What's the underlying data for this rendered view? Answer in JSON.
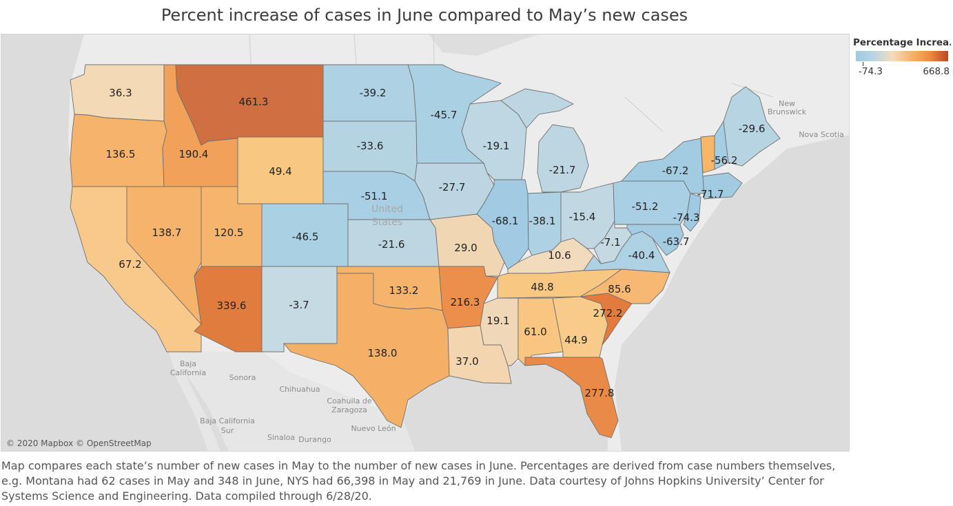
{
  "title": "Percent increase of cases in June compared to May’s new cases",
  "legend": {
    "title": "Percentage Increa..",
    "min_label": "-74.3",
    "max_label": "668.8",
    "colors": [
      "#9fcae1",
      "#b9d6e3",
      "#f6dbb9",
      "#f7b36a",
      "#ee8b44",
      "#b74a1f"
    ]
  },
  "attribution": "© 2020 Mapbox © OpenStreetMap",
  "geo_labels": {
    "new_brunswick_1": "New",
    "new_brunswick_2": "Brunswick",
    "nova_scotia": "Nova Scotia",
    "united_states_1": "United",
    "united_states_2": "States",
    "baja_california_1": "Baja",
    "baja_california_2": "California",
    "sonora": "Sonora",
    "chihuahua": "Chihuahua",
    "coahuila_1": "Coahuila de",
    "coahuila_2": "Zaragoza",
    "baja_california_sur_1": "Baja California",
    "baja_california_sur_2": "Sur",
    "nuevo_leon": "Nuevo León",
    "sinaloa": "Sinaloa",
    "durango": "Durango"
  },
  "states": {
    "WA": {
      "value": "36.3",
      "color": "#f3d9b6"
    },
    "OR": {
      "value": "136.5",
      "color": "#f6b36b"
    },
    "CA": {
      "value": "67.2",
      "color": "#f8c98a"
    },
    "ID": {
      "value": "190.4",
      "color": "#f2a158"
    },
    "MT": {
      "value": "461.3",
      "color": "#d06f41"
    },
    "WY": {
      "value": "49.4",
      "color": "#f8c781"
    },
    "NV": {
      "value": "138.7",
      "color": "#f6b36b"
    },
    "UT": {
      "value": "120.5",
      "color": "#f6b56d"
    },
    "AZ": {
      "value": "339.6",
      "color": "#e07c3e"
    },
    "CO": {
      "value": "-46.5",
      "color": "#a9d0e3"
    },
    "NM": {
      "value": "-3.7",
      "color": "#c5dae3"
    },
    "ND": {
      "value": "-39.2",
      "color": "#aed1e3"
    },
    "SD": {
      "value": "-33.6",
      "color": "#b5d4e2"
    },
    "NE": {
      "value": "-51.1",
      "color": "#a8cfe3"
    },
    "KS": {
      "value": "-21.6",
      "color": "#bdd6e2"
    },
    "OK": {
      "value": "133.2",
      "color": "#f6b36b"
    },
    "TX": {
      "value": "138.0",
      "color": "#f5b067"
    },
    "MN": {
      "value": "-45.7",
      "color": "#a9d0e3"
    },
    "IA": {
      "value": "-27.7",
      "color": "#bcd5e2"
    },
    "MO": {
      "value": "29.0",
      "color": "#f1d6b3"
    },
    "AR": {
      "value": "216.3",
      "color": "#ec8f4c"
    },
    "LA": {
      "value": "37.0",
      "color": "#f3d6b0"
    },
    "WI": {
      "value": "-19.1",
      "color": "#bfd7e2"
    },
    "IL": {
      "value": "-68.1",
      "color": "#a1cbe2"
    },
    "MS": {
      "value": "19.1",
      "color": "#f0d7b8"
    },
    "MI": {
      "value": "-21.7",
      "color": "#bdd6e2"
    },
    "IN": {
      "value": "-38.1",
      "color": "#aed1e3"
    },
    "KY": {
      "value": "10.6",
      "color": "#f2dabc"
    },
    "TN": {
      "value": "48.8",
      "color": "#f8c781"
    },
    "AL": {
      "value": "61.0",
      "color": "#f8c680"
    },
    "OH": {
      "value": "-15.4",
      "color": "#c1d8e2"
    },
    "WV": {
      "value": "-7.1",
      "color": "#c4d9e2"
    },
    "GA": {
      "value": "44.9",
      "color": "#f8cb8b"
    },
    "FL": {
      "value": "277.8",
      "color": "#ea8a47"
    },
    "SC": {
      "value": "272.2",
      "color": "#e27b3d"
    },
    "NC": {
      "value": "85.6",
      "color": "#f6b873"
    },
    "VA": {
      "value": "-40.4",
      "color": "#aed1e3"
    },
    "PA": {
      "value": "-51.2",
      "color": "#a8cfe3"
    },
    "NY": {
      "value": "-67.2",
      "color": "#a2cce2"
    },
    "NJ": {
      "value": "-74.3",
      "color": "#9fcae1"
    },
    "MD": {
      "value": "-63.7",
      "color": "#a3cce2"
    },
    "VT": {
      "value": "",
      "color": "#f8b766"
    },
    "NH": {
      "value": "-56.2",
      "color": "#a6cee3"
    },
    "MA": {
      "value": "-71.7",
      "color": "#a0cbe1"
    },
    "ME": {
      "value": "-29.6",
      "color": "#b7d4e2"
    }
  },
  "caption": "Map compares each state’s number of new cases in May to the number of new cases in June. Percentages are derived from case numbers themselves, e.g. Montana had 62 cases in May and 348 in June, NYS had 66,398 in May and 21,769 in June. Data courtesy of Johns Hopkins University’ Center for Systems Science and Engineering. Data compiled through 6/28/20."
}
